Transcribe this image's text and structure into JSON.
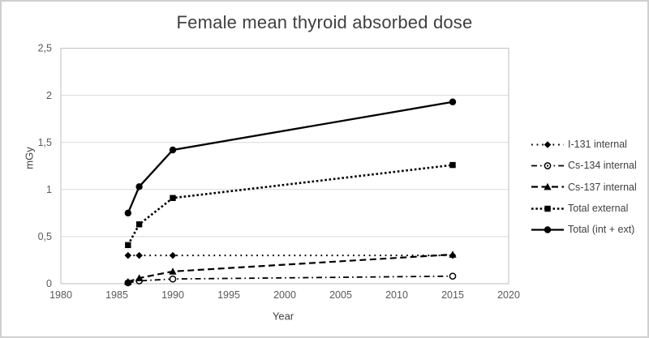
{
  "window": {
    "background": "#ffffff",
    "border_color": "#cfcfcf"
  },
  "chart_data": {
    "type": "line",
    "title": "Female mean thyroid absorbed dose",
    "xlabel": "Year",
    "ylabel": "mGy",
    "xlim": [
      1980,
      2020
    ],
    "ylim": [
      0,
      2.5
    ],
    "grid": "horizontal",
    "legend_position": "right-outside",
    "x_ticks": [
      {
        "value": 1980,
        "label": "1980"
      },
      {
        "value": 1985,
        "label": "1985"
      },
      {
        "value": 1990,
        "label": "1990"
      },
      {
        "value": 1995,
        "label": "1995"
      },
      {
        "value": 2000,
        "label": "2000"
      },
      {
        "value": 2005,
        "label": "2005"
      },
      {
        "value": 2010,
        "label": "2010"
      },
      {
        "value": 2015,
        "label": "2015"
      },
      {
        "value": 2020,
        "label": "2020"
      }
    ],
    "y_ticks": [
      {
        "value": 0,
        "label": "0"
      },
      {
        "value": 0.5,
        "label": "0,5"
      },
      {
        "value": 1,
        "label": "1"
      },
      {
        "value": 1.5,
        "label": "1,5"
      },
      {
        "value": 2,
        "label": "2"
      },
      {
        "value": 2.5,
        "label": "2,5"
      }
    ],
    "x": [
      1986,
      1987,
      1990,
      2015
    ],
    "series": [
      {
        "name": "I-131 internal",
        "values": [
          0.3,
          0.3,
          0.3,
          0.3
        ],
        "line_style": "dotted",
        "marker": "diamond",
        "color": "#000000"
      },
      {
        "name": "Cs-134 internal",
        "values": [
          0.01,
          0.03,
          0.05,
          0.08
        ],
        "line_style": "dash-dot",
        "marker": "open-circle",
        "color": "#000000"
      },
      {
        "name": "Cs-137 internal",
        "values": [
          0.02,
          0.06,
          0.13,
          0.31
        ],
        "line_style": "dashed",
        "marker": "triangle",
        "color": "#000000"
      },
      {
        "name": "Total external",
        "values": [
          0.41,
          0.63,
          0.91,
          1.26
        ],
        "line_style": "dense-dotted",
        "marker": "square",
        "color": "#000000"
      },
      {
        "name": "Total (int + ext)",
        "values": [
          0.75,
          1.03,
          1.42,
          1.93
        ],
        "line_style": "solid",
        "marker": "circle",
        "color": "#000000"
      }
    ],
    "colors": {
      "series": "#000000",
      "grid": "#d9d9d9",
      "axis_border": "#c9c9c9",
      "title_text": "#3f3f3f",
      "tick_text": "#595959",
      "legend_text": "#404040"
    }
  }
}
